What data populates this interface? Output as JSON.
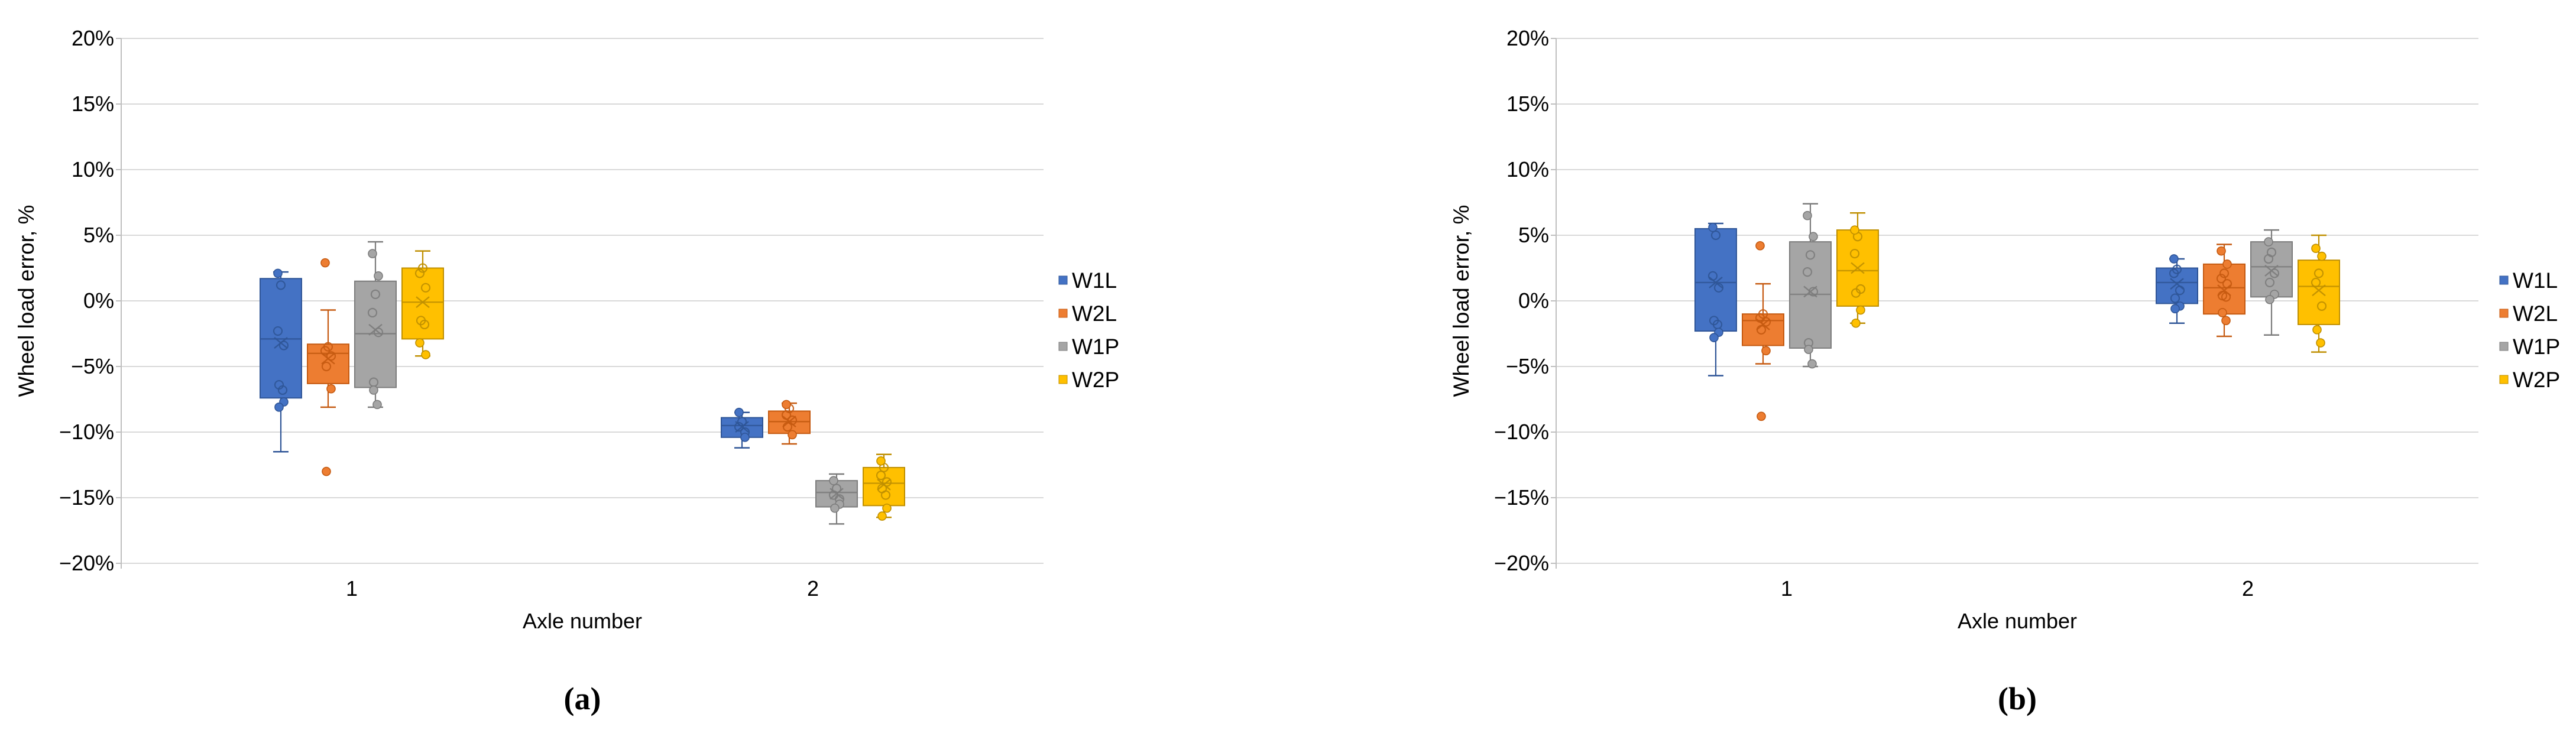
{
  "page": {
    "background": "#FFFFFF"
  },
  "colors": {
    "gridline": "#D9D9D9",
    "axis_line": "#BFBFBF",
    "text": "#000000",
    "series": {
      "W1L": {
        "fill": "#4472C4",
        "stroke": "#2F5597"
      },
      "W2L": {
        "fill": "#ED7D31",
        "stroke": "#C55A11"
      },
      "W1P": {
        "fill": "#A5A5A5",
        "stroke": "#7C7C7C"
      },
      "W2P": {
        "fill": "#FFC000",
        "stroke": "#BF8F00"
      }
    }
  },
  "chart_data": [
    {
      "id": "a",
      "type": "box",
      "caption": "(a)",
      "xlabel": "Axle number",
      "ylabel": "Wheel load error, %",
      "ylim": [
        -20,
        20
      ],
      "grid": true,
      "legend_position": "right",
      "y_tick_labels": [
        "20%",
        "15%",
        "10%",
        "5%",
        "0%",
        "−5%",
        "−10%",
        "−15%",
        "−20%"
      ],
      "y_tick_values": [
        20,
        15,
        10,
        5,
        0,
        -5,
        -10,
        -15,
        -20
      ],
      "categories": [
        "1",
        "2"
      ],
      "legend": [
        "W1L",
        "W2L",
        "W1P",
        "W2P"
      ],
      "series": [
        {
          "name": "W1L",
          "color": "#4472C4",
          "stroke": "#2F5597",
          "boxes": [
            {
              "low": -11.5,
              "q1": -7.4,
              "median": -2.9,
              "q3": 1.7,
              "high": 2.2,
              "mean": -3.2,
              "circles": [
                1.2,
                -2.3,
                -3.4,
                -6.4,
                -6.8
              ],
              "dots": [
                2.1,
                -7.7,
                -8.1
              ]
            },
            {
              "low": -11.2,
              "q1": -10.4,
              "median": -9.5,
              "q3": -8.9,
              "high": -8.5,
              "mean": -9.6,
              "circles": [
                -9.2,
                -9.6,
                -10.0
              ],
              "dots": [
                -8.5,
                -10.4
              ]
            }
          ]
        },
        {
          "name": "W2L",
          "color": "#ED7D31",
          "stroke": "#C55A11",
          "boxes": [
            {
              "low": -8.1,
              "q1": -6.3,
              "median": -4.0,
              "q3": -3.3,
              "high": -0.7,
              "mean": -4.4,
              "circles": [
                -3.5,
                -3.8,
                -4.2,
                -5.0
              ],
              "dots": [
                2.9,
                -6.7,
                -13.0
              ]
            },
            {
              "low": -10.9,
              "q1": -10.1,
              "median": -9.2,
              "q3": -8.4,
              "high": -7.8,
              "mean": -9.2,
              "circles": [
                -8.2,
                -8.7,
                -9.1,
                -9.6
              ],
              "dots": [
                -7.9,
                -10.2
              ]
            }
          ]
        },
        {
          "name": "W1P",
          "color": "#A5A5A5",
          "stroke": "#7C7C7C",
          "boxes": [
            {
              "low": -8.1,
              "q1": -6.6,
              "median": -2.5,
              "q3": 1.5,
              "high": 4.5,
              "mean": -2.2,
              "circles": [
                0.5,
                -0.9,
                -2.4,
                -6.2
              ],
              "dots": [
                3.6,
                1.9,
                -6.8,
                -7.9
              ]
            },
            {
              "low": -17.0,
              "q1": -15.7,
              "median": -14.6,
              "q3": -13.7,
              "high": -13.2,
              "mean": -14.7,
              "circles": [
                -14.3,
                -14.8,
                -15.1
              ],
              "dots": [
                -13.7,
                -15.5,
                -15.8
              ]
            }
          ]
        },
        {
          "name": "W2P",
          "color": "#FFC000",
          "stroke": "#BF8F00",
          "boxes": [
            {
              "low": -4.2,
              "q1": -2.9,
              "median": -0.1,
              "q3": 2.5,
              "high": 3.8,
              "mean": -0.1,
              "circles": [
                2.5,
                2.1,
                1.0,
                -1.5,
                -1.8
              ],
              "dots": [
                -3.2,
                -4.1
              ]
            },
            {
              "low": -16.5,
              "q1": -15.6,
              "median": -13.9,
              "q3": -12.7,
              "high": -11.7,
              "mean": -14.0,
              "circles": [
                -12.7,
                -13.3,
                -13.8,
                -14.3,
                -14.8
              ],
              "dots": [
                -12.2,
                -15.8,
                -16.4
              ]
            }
          ]
        }
      ]
    },
    {
      "id": "b",
      "type": "box",
      "caption": "(b)",
      "xlabel": "Axle number",
      "ylabel": "Wheel load error, %",
      "ylim": [
        -20,
        20
      ],
      "grid": true,
      "legend_position": "right",
      "y_tick_labels": [
        "20%",
        "15%",
        "10%",
        "5%",
        "0%",
        "−5%",
        "−10%",
        "−15%",
        "−20%"
      ],
      "y_tick_values": [
        20,
        15,
        10,
        5,
        0,
        -5,
        -10,
        -15,
        -20
      ],
      "categories": [
        "1",
        "2"
      ],
      "legend": [
        "W1L",
        "W2L",
        "W1P",
        "W2P"
      ],
      "series": [
        {
          "name": "W1L",
          "color": "#4472C4",
          "stroke": "#2F5597",
          "boxes": [
            {
              "low": -5.7,
              "q1": -2.3,
              "median": 1.4,
              "q3": 5.5,
              "high": 5.9,
              "mean": 1.4,
              "circles": [
                5.0,
                1.9,
                1.0,
                -1.5,
                -1.8
              ],
              "dots": [
                5.6,
                -2.4,
                -2.8
              ]
            },
            {
              "low": -1.7,
              "q1": -0.2,
              "median": 1.4,
              "q3": 2.5,
              "high": 3.2,
              "mean": 1.3,
              "circles": [
                2.4,
                2.1,
                0.8,
                0.2
              ],
              "dots": [
                3.2,
                -0.4,
                -0.6
              ]
            }
          ]
        },
        {
          "name": "W2L",
          "color": "#ED7D31",
          "stroke": "#C55A11",
          "boxes": [
            {
              "low": -4.8,
              "q1": -3.4,
              "median": -1.5,
              "q3": -1.0,
              "high": 1.3,
              "mean": -1.8,
              "circles": [
                -1.0,
                -1.3,
                -1.6,
                -2.2
              ],
              "dots": [
                4.2,
                -3.8,
                -8.8
              ]
            },
            {
              "low": -2.7,
              "q1": -1.0,
              "median": 1.0,
              "q3": 2.8,
              "high": 4.3,
              "mean": 0.8,
              "circles": [
                2.1,
                1.7,
                1.3,
                0.4,
                0.3
              ],
              "dots": [
                3.8,
                2.8,
                -0.9,
                -1.5
              ]
            }
          ]
        },
        {
          "name": "W1P",
          "color": "#A5A5A5",
          "stroke": "#7C7C7C",
          "boxes": [
            {
              "low": -5.0,
              "q1": -3.6,
              "median": 0.5,
              "q3": 4.5,
              "high": 7.4,
              "mean": 0.7,
              "circles": [
                3.5,
                2.2,
                0.7,
                -3.2
              ],
              "dots": [
                6.5,
                4.9,
                -3.7,
                -4.8
              ]
            },
            {
              "low": -2.6,
              "q1": 0.3,
              "median": 2.6,
              "q3": 4.5,
              "high": 5.4,
              "mean": 2.3,
              "circles": [
                3.7,
                3.2,
                2.1,
                1.4
              ],
              "dots": [
                4.5,
                0.5,
                0.1
              ]
            }
          ]
        },
        {
          "name": "W2P",
          "color": "#FFC000",
          "stroke": "#BF8F00",
          "boxes": [
            {
              "low": -1.7,
              "q1": -0.4,
              "median": 2.3,
              "q3": 5.4,
              "high": 6.7,
              "mean": 2.5,
              "circles": [
                4.9,
                3.6,
                0.9,
                0.6
              ],
              "dots": [
                5.4,
                -0.7,
                -1.7
              ]
            },
            {
              "low": -3.9,
              "q1": -1.8,
              "median": 1.1,
              "q3": 3.1,
              "high": 5.0,
              "mean": 0.8,
              "circles": [
                2.1,
                1.4,
                -0.4
              ],
              "dots": [
                4.0,
                3.4,
                -2.2,
                -3.2
              ]
            }
          ]
        }
      ]
    }
  ]
}
